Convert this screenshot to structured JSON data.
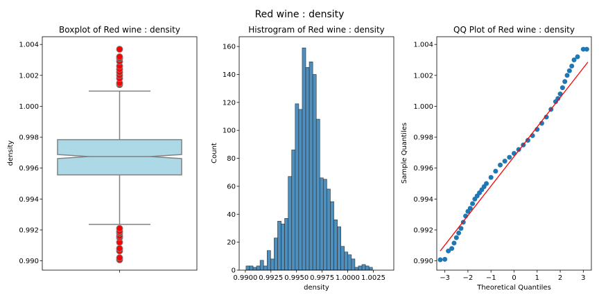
{
  "figure": {
    "suptitle": "Red wine : density"
  },
  "chart_data": [
    {
      "type": "box",
      "title": "Boxplot of Red wine : density",
      "xlabel": "",
      "ylabel": "density",
      "ylim": [
        0.9894,
        1.0045
      ],
      "yticks": [
        0.99,
        0.992,
        0.994,
        0.996,
        0.998,
        1.0,
        1.002,
        1.004
      ],
      "ytick_labels": [
        "0.990",
        "0.992",
        "0.994",
        "0.996",
        "0.998",
        "1.000",
        "1.002",
        "1.004"
      ],
      "box_color": "#add8e6",
      "flier_color": "#ff0000",
      "stats": {
        "whislo": 0.99236,
        "q1": 0.99556,
        "notch_low": 0.99662,
        "median": 0.99675,
        "notch_high": 0.99688,
        "q3": 0.99784,
        "whishi": 1.00098
      },
      "fliers_high": [
        1.0014,
        1.0015,
        1.0018,
        1.002,
        1.0022,
        1.0024,
        1.0026,
        1.0029,
        1.0031,
        1.0032,
        1.00369
      ],
      "fliers_low": [
        0.99007,
        0.9902,
        0.99064,
        0.9908,
        0.9912,
        0.9915,
        0.9916,
        0.9918,
        0.99191,
        0.9921
      ]
    },
    {
      "type": "bar",
      "title": "Histrogram of Red wine : density",
      "xlabel": "density",
      "ylabel": "Count",
      "bar_color": "#4e8fbd",
      "xlim": [
        0.9894,
        1.0045
      ],
      "ylim": [
        0,
        167
      ],
      "xticks": [
        0.99,
        0.9925,
        0.995,
        0.9975,
        1.0,
        1.0025
      ],
      "xtick_labels": [
        "0.9900",
        "0.9925",
        "0.9950",
        "0.9975",
        "1.0000",
        "1.0025"
      ],
      "yticks": [
        0,
        20,
        40,
        60,
        80,
        100,
        120,
        140,
        160
      ],
      "ytick_labels": [
        "0",
        "20",
        "40",
        "60",
        "80",
        "100",
        "120",
        "140",
        "160"
      ],
      "bin_start": 0.99007,
      "bin_width": 0.000343,
      "counts": [
        3,
        3,
        2,
        3,
        7,
        3,
        14,
        8,
        23,
        35,
        33,
        37,
        67,
        86,
        119,
        115,
        159,
        145,
        149,
        140,
        108,
        66,
        65,
        58,
        49,
        36,
        31,
        17,
        13,
        11,
        8,
        2,
        3,
        4,
        3,
        2
      ]
    },
    {
      "type": "scatter",
      "title": "QQ Plot of Red wine : density",
      "xlabel": "Theoretical Quantiles",
      "ylabel": "Sample Quantiles",
      "point_color": "#1f77b4",
      "line_color": "#ff0000",
      "xlim": [
        -3.35,
        3.35
      ],
      "ylim": [
        0.9894,
        1.0045
      ],
      "xticks": [
        -3,
        -2,
        -1,
        0,
        1,
        2,
        3
      ],
      "xtick_labels": [
        "−3",
        "−2",
        "−1",
        "0",
        "1",
        "2",
        "3"
      ],
      "yticks": [
        0.99,
        0.992,
        0.994,
        0.996,
        0.998,
        1.0,
        1.002,
        1.004
      ],
      "ytick_labels": [
        "0.990",
        "0.992",
        "0.994",
        "0.996",
        "0.998",
        "1.000",
        "1.002",
        "1.004"
      ],
      "reference_line": {
        "x": [
          -3.2,
          3.2
        ],
        "y": [
          0.99064,
          1.00286
        ]
      },
      "points": {
        "x": [
          -3.2,
          -3.0,
          -2.85,
          -2.7,
          -2.6,
          -2.5,
          -2.4,
          -2.3,
          -2.2,
          -2.1,
          -2.0,
          -1.9,
          -1.8,
          -1.7,
          -1.6,
          -1.5,
          -1.4,
          -1.3,
          -1.2,
          -1.0,
          -0.8,
          -0.6,
          -0.4,
          -0.2,
          0.0,
          0.2,
          0.4,
          0.6,
          0.8,
          1.0,
          1.2,
          1.4,
          1.6,
          1.8,
          1.9,
          2.0,
          2.1,
          2.2,
          2.3,
          2.4,
          2.5,
          2.6,
          2.75,
          3.0,
          3.15
        ],
        "y": [
          0.99007,
          0.9901,
          0.99064,
          0.9908,
          0.99115,
          0.9915,
          0.9918,
          0.9921,
          0.9925,
          0.9929,
          0.9932,
          0.9934,
          0.9937,
          0.994,
          0.9942,
          0.9944,
          0.9946,
          0.9948,
          0.995,
          0.9954,
          0.9958,
          0.9962,
          0.99645,
          0.9967,
          0.99695,
          0.9972,
          0.9975,
          0.9978,
          0.9981,
          0.9985,
          0.9989,
          0.9993,
          0.9998,
          1.0003,
          1.0005,
          1.0008,
          1.0012,
          1.0016,
          1.002,
          1.0023,
          1.0026,
          1.003,
          1.0032,
          1.00369,
          1.00369
        ]
      }
    }
  ]
}
